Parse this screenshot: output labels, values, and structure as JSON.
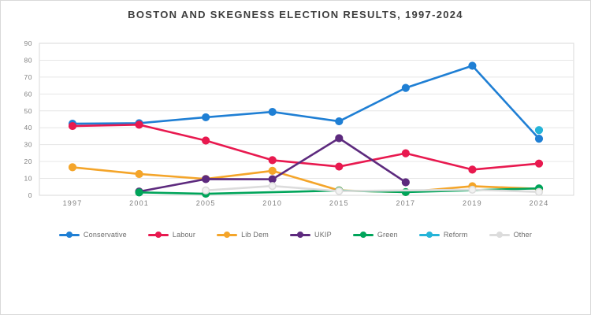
{
  "chart_data": {
    "type": "line",
    "title": "BOSTON AND SKEGNESS ELECTION RESULTS, 1997-2024",
    "categories": [
      "1997",
      "2001",
      "2005",
      "2010",
      "2015",
      "2017",
      "2019",
      "2024"
    ],
    "series": [
      {
        "name": "Conservative",
        "color": "#1f7fd4",
        "values": [
          42.4,
          42.7,
          46.2,
          49.4,
          43.8,
          63.6,
          76.7,
          33.5
        ]
      },
      {
        "name": "Labour",
        "color": "#e8194f",
        "values": [
          41.0,
          41.8,
          32.4,
          20.8,
          17.0,
          24.9,
          15.2,
          18.8
        ]
      },
      {
        "name": "Lib Dem",
        "color": "#f4a52a",
        "values": [
          16.6,
          12.6,
          9.7,
          14.5,
          2.9,
          1.9,
          5.4,
          3.8
        ]
      },
      {
        "name": "UKIP",
        "color": "#5d2a7e",
        "values": [
          null,
          2.2,
          9.6,
          9.5,
          33.8,
          7.7,
          null,
          null
        ]
      },
      {
        "name": "Green",
        "color": "#00a45a",
        "values": [
          null,
          1.7,
          0.9,
          null,
          2.8,
          1.9,
          null,
          4.1
        ]
      },
      {
        "name": "Reform",
        "color": "#25b4d8",
        "values": [
          null,
          null,
          null,
          null,
          null,
          null,
          null,
          38.6
        ]
      },
      {
        "name": "Other",
        "color": "#dcdcdc",
        "marker_fill": "#f2f2f2",
        "values": [
          null,
          null,
          2.9,
          5.5,
          2.5,
          null,
          3.3,
          2.0
        ]
      }
    ],
    "ylabel": "",
    "xlabel": "",
    "ylim": [
      0,
      90
    ],
    "ytick_step": 10,
    "grid": true,
    "legend_position": "bottom",
    "grid_color": "#e6e6e6",
    "plot_border_color": "#d9d9d9",
    "axis_text_color": "#7f7f7f"
  }
}
